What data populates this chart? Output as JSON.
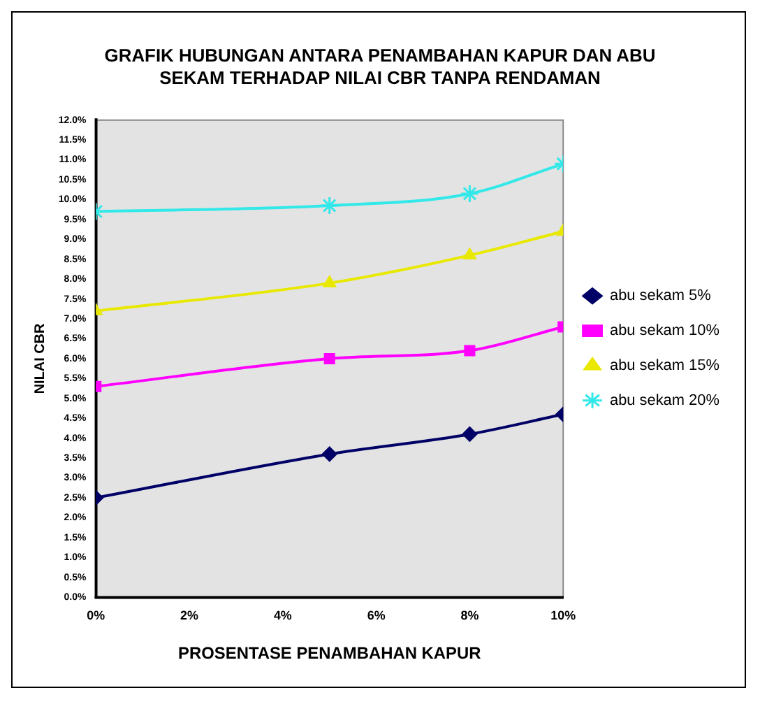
{
  "chart_data": {
    "type": "line",
    "title": "GRAFIK HUBUNGAN ANTARA PENAMBAHAN KAPUR DAN ABU SEKAM TERHADAP NILAI CBR TANPA RENDAMAN",
    "xlabel": "PROSENTASE PENAMBAHAN KAPUR",
    "ylabel": "NILAI CBR",
    "x": [
      0,
      5,
      8,
      10
    ],
    "series": [
      {
        "name": "abu sekam 5%",
        "color": "#000066",
        "marker": "diamond",
        "values": [
          2.5,
          3.6,
          4.1,
          4.6
        ]
      },
      {
        "name": "abu sekam 10%",
        "color": "#ff00ff",
        "marker": "square",
        "values": [
          5.3,
          6.0,
          6.2,
          6.8
        ]
      },
      {
        "name": "abu sekam 15%",
        "color": "#e8e800",
        "marker": "triangle",
        "values": [
          7.2,
          7.9,
          8.6,
          9.2
        ]
      },
      {
        "name": "abu sekam 20%",
        "color": "#33e8e8",
        "marker": "cross",
        "values": [
          9.7,
          9.85,
          10.15,
          10.9
        ]
      }
    ],
    "xlim": [
      0,
      10
    ],
    "xticks": [
      {
        "value": 0,
        "label": "0%"
      },
      {
        "value": 2,
        "label": "2%"
      },
      {
        "value": 4,
        "label": "4%"
      },
      {
        "value": 6,
        "label": "6%"
      },
      {
        "value": 8,
        "label": "8%"
      },
      {
        "value": 10,
        "label": "10%"
      }
    ],
    "ylim": [
      0,
      12
    ],
    "yticks": [
      {
        "value": 0,
        "label": "0.0%"
      },
      {
        "value": 0.5,
        "label": "0.5%"
      },
      {
        "value": 1,
        "label": "1.0%"
      },
      {
        "value": 1.5,
        "label": "1.5%"
      },
      {
        "value": 2,
        "label": "2.0%"
      },
      {
        "value": 2.5,
        "label": "2.5%"
      },
      {
        "value": 3,
        "label": "3.0%"
      },
      {
        "value": 3.5,
        "label": "3.5%"
      },
      {
        "value": 4,
        "label": "4.0%"
      },
      {
        "value": 4.5,
        "label": "4.5%"
      },
      {
        "value": 5,
        "label": "5.0%"
      },
      {
        "value": 5.5,
        "label": "5.5%"
      },
      {
        "value": 6,
        "label": "6.0%"
      },
      {
        "value": 6.5,
        "label": "6.5%"
      },
      {
        "value": 7,
        "label": "7.0%"
      },
      {
        "value": 7.5,
        "label": "7.5%"
      },
      {
        "value": 8,
        "label": "8.0%"
      },
      {
        "value": 8.5,
        "label": "8.5%"
      },
      {
        "value": 9,
        "label": "9.0%"
      },
      {
        "value": 9.5,
        "label": "9.5%"
      },
      {
        "value": 10,
        "label": "10.0%"
      },
      {
        "value": 10.5,
        "label": "10.5%"
      },
      {
        "value": 11,
        "label": "11.0%"
      },
      {
        "value": 11.5,
        "label": "11.5%"
      },
      {
        "value": 12,
        "label": "12.0%"
      }
    ],
    "grid": false,
    "legend": "right",
    "line_style": "solid"
  }
}
